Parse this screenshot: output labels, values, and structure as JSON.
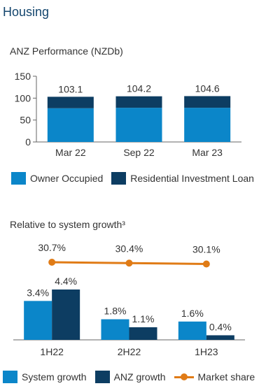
{
  "section_title": "Housing",
  "colors": {
    "owner_occupied": "#0b86c9",
    "residential_investment": "#0d3d62",
    "system_growth": "#0b86c9",
    "anz_growth": "#0d3d62",
    "market_share": "#e07b16",
    "axis": "#666666",
    "text": "#333333"
  },
  "chart_data": [
    {
      "type": "bar",
      "stacked": true,
      "title": "ANZ Performance (NZDb)",
      "categories": [
        "Mar 22",
        "Sep 22",
        "Mar 23"
      ],
      "series": [
        {
          "name": "Owner Occupied",
          "values": [
            77,
            78,
            78
          ]
        },
        {
          "name": "Residential Investment Loan",
          "values": [
            26.1,
            26.2,
            26.6
          ]
        }
      ],
      "totals": [
        "103.1",
        "104.2",
        "104.6"
      ],
      "yticks": [
        0,
        50,
        100,
        150
      ],
      "ylim": [
        0,
        150
      ],
      "legend": "bottom"
    },
    {
      "type": "bar",
      "title": "Relative to system growth³",
      "categories": [
        "1H22",
        "2H22",
        "1H23"
      ],
      "series": [
        {
          "name": "System growth",
          "values": [
            3.4,
            1.8,
            1.6
          ],
          "labels": [
            "3.4%",
            "1.8%",
            "1.6%"
          ]
        },
        {
          "name": "ANZ growth",
          "values": [
            4.4,
            1.1,
            0.4
          ],
          "labels": [
            "4.4%",
            "1.1%",
            "0.4%"
          ]
        }
      ],
      "line_series": {
        "name": "Market share",
        "values": [
          30.7,
          30.4,
          30.1
        ],
        "labels": [
          "30.7%",
          "30.4%",
          "30.1%"
        ]
      },
      "ylim": [
        0,
        4.4
      ],
      "legend": "bottom"
    }
  ]
}
